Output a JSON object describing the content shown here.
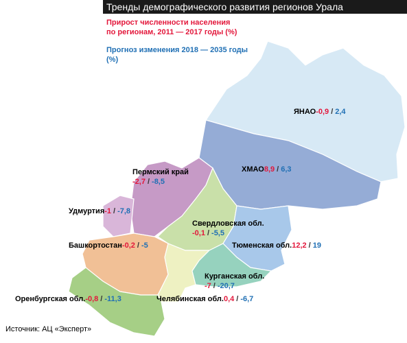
{
  "header": {
    "title": "Тренды демографического развития регионов Урала"
  },
  "legend": {
    "growth": [
      "Прирост численности населения",
      "по регионам, 2011 — 2017 годы (%)"
    ],
    "forecast": [
      "Прогноз изменения 2018 — 2035 годы",
      "(%)"
    ]
  },
  "separator": "/",
  "regions": [
    {
      "name": "ЯНАО",
      "growth": "-0,9",
      "forecast": "2,4"
    },
    {
      "name": "ХМАО",
      "growth": "8,9",
      "forecast": "6,3"
    },
    {
      "name": "Пермский край",
      "growth": "-2,7",
      "forecast": "-8,5"
    },
    {
      "name": "Удмуртия",
      "growth": "-1",
      "forecast": "-7,8"
    },
    {
      "name": "Свердловская обл.",
      "growth": "-0,1",
      "forecast": "-5,5"
    },
    {
      "name": "Башкортостан",
      "growth": "-0,2",
      "forecast": "-5"
    },
    {
      "name": "Тюменская обл.",
      "growth": "12,2",
      "forecast": "19"
    },
    {
      "name": "Курганская обл.",
      "growth": "-7",
      "forecast": "-20,7"
    },
    {
      "name": "Оренбургская обл.",
      "growth": "-0,8",
      "forecast": "-11,3"
    },
    {
      "name": "Челябинская обл.",
      "growth": "0,4",
      "forecast": "-6,7"
    }
  ],
  "source": "Источник: АЦ «Эксперт»"
}
